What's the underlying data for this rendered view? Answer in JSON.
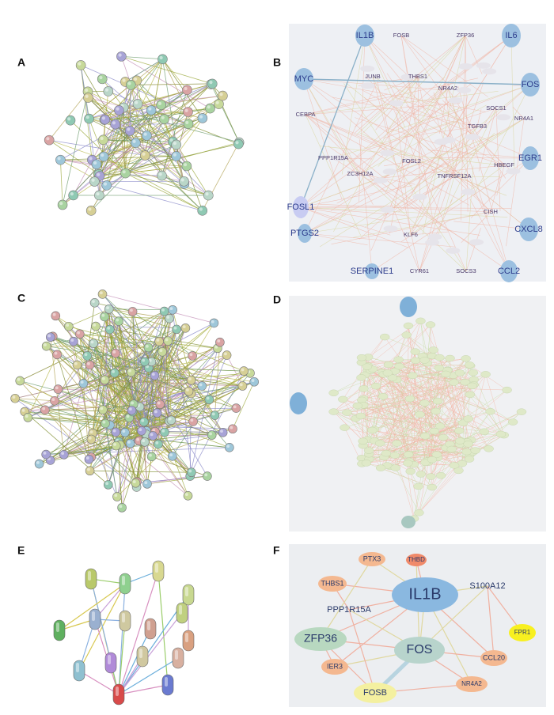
{
  "labels": [
    "A",
    "B",
    "C",
    "D",
    "E",
    "F"
  ],
  "panel_b": {
    "nodes": [
      "IL1B",
      "FOSB",
      "ZFP36",
      "IL6",
      "MYC",
      "JUNB",
      "THBS1",
      "FOS",
      "CEBPA",
      "NR4A2",
      "SOCS1",
      "TGFB3",
      "NR4A1",
      "PPP1R15A",
      "ZC3H12A",
      "FOSL2",
      "TNFRSF12A",
      "HBEGF",
      "EGR1",
      "FOSL1",
      "CISH",
      "PTGS2",
      "KLF6",
      "CXCL8",
      "SERPINE1",
      "CYR61",
      "SOCS3",
      "CCL2"
    ]
  },
  "panel_f": {
    "nodes": [
      "PTX3",
      "THBD",
      "THBS1",
      "IL1B",
      "S100A12",
      "PPP1R15A",
      "ZFP36",
      "FOS",
      "FPR1",
      "IER3",
      "CCL20",
      "FOSB",
      "NR4A2"
    ]
  }
}
